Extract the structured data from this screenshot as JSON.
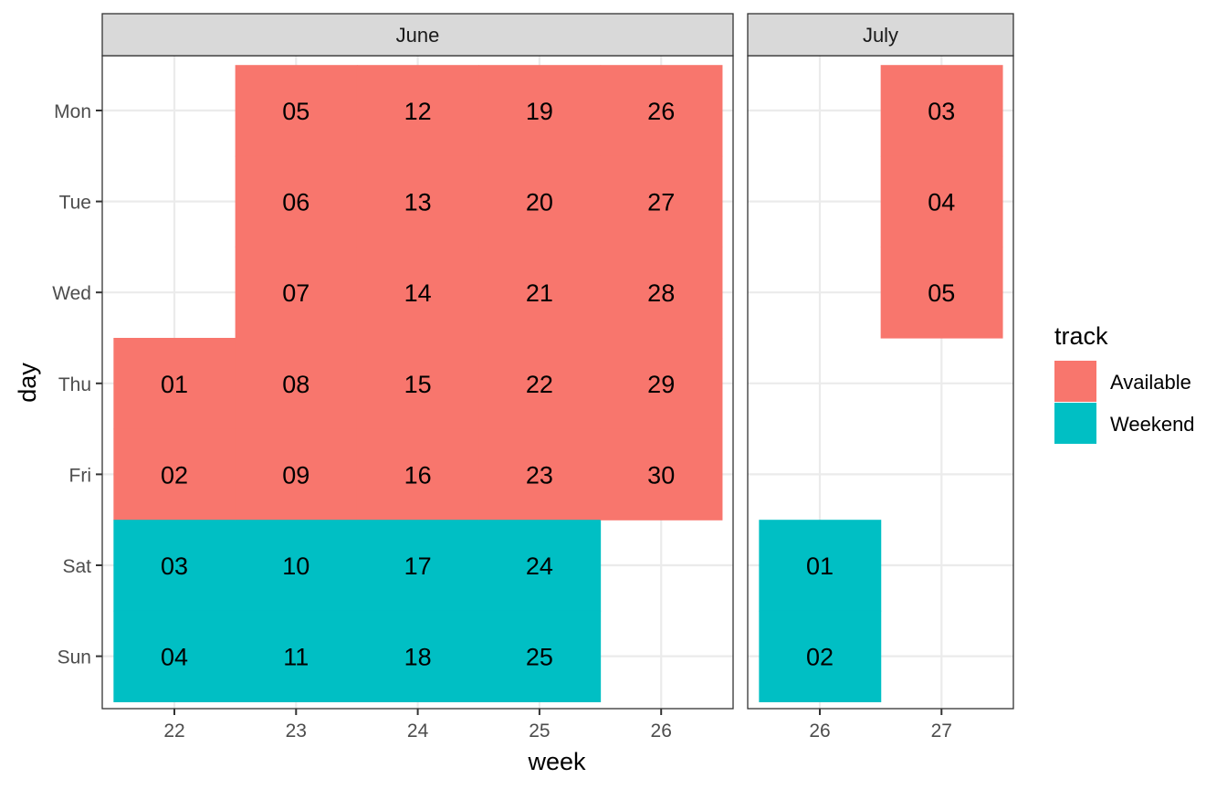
{
  "chart_data": {
    "type": "heatmap",
    "xlabel": "week",
    "ylabel": "day",
    "days": [
      "Mon",
      "Tue",
      "Wed",
      "Thu",
      "Fri",
      "Sat",
      "Sun"
    ],
    "facets": [
      {
        "label": "June",
        "weeks": [
          22,
          23,
          24,
          25,
          26
        ],
        "cells": [
          {
            "week": 22,
            "day": "Thu",
            "label": "01",
            "track": "Available"
          },
          {
            "week": 22,
            "day": "Fri",
            "label": "02",
            "track": "Available"
          },
          {
            "week": 22,
            "day": "Sat",
            "label": "03",
            "track": "Weekend"
          },
          {
            "week": 22,
            "day": "Sun",
            "label": "04",
            "track": "Weekend"
          },
          {
            "week": 23,
            "day": "Mon",
            "label": "05",
            "track": "Available"
          },
          {
            "week": 23,
            "day": "Tue",
            "label": "06",
            "track": "Available"
          },
          {
            "week": 23,
            "day": "Wed",
            "label": "07",
            "track": "Available"
          },
          {
            "week": 23,
            "day": "Thu",
            "label": "08",
            "track": "Available"
          },
          {
            "week": 23,
            "day": "Fri",
            "label": "09",
            "track": "Available"
          },
          {
            "week": 23,
            "day": "Sat",
            "label": "10",
            "track": "Weekend"
          },
          {
            "week": 23,
            "day": "Sun",
            "label": "11",
            "track": "Weekend"
          },
          {
            "week": 24,
            "day": "Mon",
            "label": "12",
            "track": "Available"
          },
          {
            "week": 24,
            "day": "Tue",
            "label": "13",
            "track": "Available"
          },
          {
            "week": 24,
            "day": "Wed",
            "label": "14",
            "track": "Available"
          },
          {
            "week": 24,
            "day": "Thu",
            "label": "15",
            "track": "Available"
          },
          {
            "week": 24,
            "day": "Fri",
            "label": "16",
            "track": "Available"
          },
          {
            "week": 24,
            "day": "Sat",
            "label": "17",
            "track": "Weekend"
          },
          {
            "week": 24,
            "day": "Sun",
            "label": "18",
            "track": "Weekend"
          },
          {
            "week": 25,
            "day": "Mon",
            "label": "19",
            "track": "Available"
          },
          {
            "week": 25,
            "day": "Tue",
            "label": "20",
            "track": "Available"
          },
          {
            "week": 25,
            "day": "Wed",
            "label": "21",
            "track": "Available"
          },
          {
            "week": 25,
            "day": "Thu",
            "label": "22",
            "track": "Available"
          },
          {
            "week": 25,
            "day": "Fri",
            "label": "23",
            "track": "Available"
          },
          {
            "week": 25,
            "day": "Sat",
            "label": "24",
            "track": "Weekend"
          },
          {
            "week": 25,
            "day": "Sun",
            "label": "25",
            "track": "Weekend"
          },
          {
            "week": 26,
            "day": "Mon",
            "label": "26",
            "track": "Available"
          },
          {
            "week": 26,
            "day": "Tue",
            "label": "27",
            "track": "Available"
          },
          {
            "week": 26,
            "day": "Wed",
            "label": "28",
            "track": "Available"
          },
          {
            "week": 26,
            "day": "Thu",
            "label": "29",
            "track": "Available"
          },
          {
            "week": 26,
            "day": "Fri",
            "label": "30",
            "track": "Available"
          }
        ]
      },
      {
        "label": "July",
        "weeks": [
          26,
          27
        ],
        "cells": [
          {
            "week": 26,
            "day": "Sat",
            "label": "01",
            "track": "Weekend"
          },
          {
            "week": 26,
            "day": "Sun",
            "label": "02",
            "track": "Weekend"
          },
          {
            "week": 27,
            "day": "Mon",
            "label": "03",
            "track": "Available"
          },
          {
            "week": 27,
            "day": "Tue",
            "label": "04",
            "track": "Available"
          },
          {
            "week": 27,
            "day": "Wed",
            "label": "05",
            "track": "Available"
          }
        ]
      }
    ],
    "legend": {
      "title": "track",
      "position": "right",
      "entries": [
        {
          "label": "Available",
          "color": "#F8766D"
        },
        {
          "label": "Weekend",
          "color": "#00BFC4"
        }
      ]
    },
    "grid": true,
    "theme": {
      "strip_fill": "#d9d9d9",
      "panel_border": "#333333",
      "grid_color": "#ebebeb"
    }
  }
}
